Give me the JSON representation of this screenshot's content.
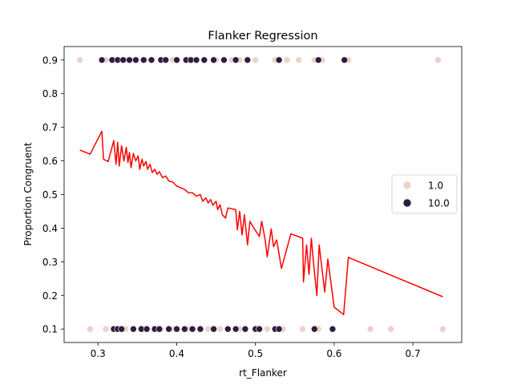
{
  "chart_data": {
    "type": "scatter",
    "title": "Flanker Regression",
    "xlabel": "rt_Flanker",
    "ylabel": "Proportion Congruent",
    "xlim": [
      0.257,
      0.762
    ],
    "ylim": [
      0.06,
      0.94
    ],
    "xticks": [
      {
        "value": 0.3,
        "label": "0.3"
      },
      {
        "value": 0.4,
        "label": "0.4"
      },
      {
        "value": 0.5,
        "label": "0.5"
      },
      {
        "value": 0.6,
        "label": "0.6"
      },
      {
        "value": 0.7,
        "label": "0.7"
      }
    ],
    "yticks": [
      {
        "value": 0.1,
        "label": "0.1"
      },
      {
        "value": 0.2,
        "label": "0.2"
      },
      {
        "value": 0.3,
        "label": "0.3"
      },
      {
        "value": 0.4,
        "label": "0.4"
      },
      {
        "value": 0.5,
        "label": "0.5"
      },
      {
        "value": 0.6,
        "label": "0.6"
      },
      {
        "value": 0.7,
        "label": "0.7"
      },
      {
        "value": 0.8,
        "label": "0.8"
      },
      {
        "value": 0.9,
        "label": "0.9"
      }
    ],
    "grid": false,
    "legend": {
      "position": "center-right"
    },
    "series": [
      {
        "name": "1.0",
        "color": "#edd1cb",
        "points": [
          [
            0.277,
            0.9
          ],
          [
            0.31,
            0.9
          ],
          [
            0.327,
            0.9
          ],
          [
            0.338,
            0.9
          ],
          [
            0.36,
            0.9
          ],
          [
            0.395,
            0.9
          ],
          [
            0.42,
            0.9
          ],
          [
            0.45,
            0.9
          ],
          [
            0.47,
            0.9
          ],
          [
            0.48,
            0.9
          ],
          [
            0.5,
            0.9
          ],
          [
            0.525,
            0.9
          ],
          [
            0.54,
            0.9
          ],
          [
            0.555,
            0.9
          ],
          [
            0.575,
            0.9
          ],
          [
            0.585,
            0.9
          ],
          [
            0.618,
            0.9
          ],
          [
            0.732,
            0.9
          ],
          [
            0.29,
            0.1
          ],
          [
            0.31,
            0.1
          ],
          [
            0.328,
            0.1
          ],
          [
            0.335,
            0.1
          ],
          [
            0.36,
            0.1
          ],
          [
            0.38,
            0.1
          ],
          [
            0.395,
            0.1
          ],
          [
            0.415,
            0.1
          ],
          [
            0.44,
            0.1
          ],
          [
            0.455,
            0.1
          ],
          [
            0.48,
            0.1
          ],
          [
            0.515,
            0.1
          ],
          [
            0.535,
            0.1
          ],
          [
            0.56,
            0.1
          ],
          [
            0.58,
            0.1
          ],
          [
            0.646,
            0.1
          ],
          [
            0.672,
            0.1
          ],
          [
            0.738,
            0.1
          ]
        ]
      },
      {
        "name": "10.0",
        "color": "#2d1e3e",
        "points": [
          [
            0.305,
            0.9
          ],
          [
            0.318,
            0.9
          ],
          [
            0.325,
            0.9
          ],
          [
            0.332,
            0.9
          ],
          [
            0.34,
            0.9
          ],
          [
            0.348,
            0.9
          ],
          [
            0.358,
            0.9
          ],
          [
            0.368,
            0.9
          ],
          [
            0.38,
            0.9
          ],
          [
            0.386,
            0.9
          ],
          [
            0.4,
            0.9
          ],
          [
            0.412,
            0.9
          ],
          [
            0.418,
            0.9
          ],
          [
            0.425,
            0.9
          ],
          [
            0.435,
            0.9
          ],
          [
            0.447,
            0.9
          ],
          [
            0.46,
            0.9
          ],
          [
            0.475,
            0.9
          ],
          [
            0.49,
            0.9
          ],
          [
            0.53,
            0.9
          ],
          [
            0.58,
            0.9
          ],
          [
            0.613,
            0.9
          ],
          [
            0.32,
            0.1
          ],
          [
            0.325,
            0.1
          ],
          [
            0.33,
            0.1
          ],
          [
            0.345,
            0.1
          ],
          [
            0.355,
            0.1
          ],
          [
            0.362,
            0.1
          ],
          [
            0.372,
            0.1
          ],
          [
            0.378,
            0.1
          ],
          [
            0.39,
            0.1
          ],
          [
            0.4,
            0.1
          ],
          [
            0.41,
            0.1
          ],
          [
            0.42,
            0.1
          ],
          [
            0.43,
            0.1
          ],
          [
            0.447,
            0.1
          ],
          [
            0.465,
            0.1
          ],
          [
            0.475,
            0.1
          ],
          [
            0.487,
            0.1
          ],
          [
            0.5,
            0.1
          ],
          [
            0.505,
            0.1
          ],
          [
            0.525,
            0.1
          ],
          [
            0.53,
            0.1
          ],
          [
            0.575,
            0.1
          ],
          [
            0.598,
            0.1
          ]
        ]
      }
    ],
    "line": {
      "color": "#ff0000",
      "points": [
        [
          0.277,
          0.632
        ],
        [
          0.29,
          0.62
        ],
        [
          0.305,
          0.688
        ],
        [
          0.307,
          0.605
        ],
        [
          0.313,
          0.598
        ],
        [
          0.32,
          0.66
        ],
        [
          0.323,
          0.59
        ],
        [
          0.325,
          0.655
        ],
        [
          0.327,
          0.585
        ],
        [
          0.33,
          0.645
        ],
        [
          0.333,
          0.6
        ],
        [
          0.336,
          0.64
        ],
        [
          0.338,
          0.595
        ],
        [
          0.34,
          0.625
        ],
        [
          0.342,
          0.58
        ],
        [
          0.345,
          0.622
        ],
        [
          0.348,
          0.6
        ],
        [
          0.351,
          0.615
        ],
        [
          0.353,
          0.575
        ],
        [
          0.356,
          0.605
        ],
        [
          0.358,
          0.585
        ],
        [
          0.361,
          0.598
        ],
        [
          0.363,
          0.575
        ],
        [
          0.366,
          0.59
        ],
        [
          0.369,
          0.565
        ],
        [
          0.372,
          0.575
        ],
        [
          0.375,
          0.56
        ],
        [
          0.378,
          0.568
        ],
        [
          0.382,
          0.55
        ],
        [
          0.386,
          0.555
        ],
        [
          0.39,
          0.54
        ],
        [
          0.395,
          0.537
        ],
        [
          0.4,
          0.525
        ],
        [
          0.405,
          0.52
        ],
        [
          0.41,
          0.515
        ],
        [
          0.415,
          0.505
        ],
        [
          0.42,
          0.505
        ],
        [
          0.425,
          0.495
        ],
        [
          0.43,
          0.5
        ],
        [
          0.433,
          0.48
        ],
        [
          0.437,
          0.49
        ],
        [
          0.44,
          0.475
        ],
        [
          0.443,
          0.485
        ],
        [
          0.446,
          0.468
        ],
        [
          0.45,
          0.48
        ],
        [
          0.452,
          0.455
        ],
        [
          0.455,
          0.47
        ],
        [
          0.458,
          0.44
        ],
        [
          0.462,
          0.43
        ],
        [
          0.465,
          0.46
        ],
        [
          0.475,
          0.455
        ],
        [
          0.477,
          0.395
        ],
        [
          0.48,
          0.45
        ],
        [
          0.483,
          0.38
        ],
        [
          0.486,
          0.44
        ],
        [
          0.49,
          0.35
        ],
        [
          0.493,
          0.42
        ],
        [
          0.498,
          0.4
        ],
        [
          0.505,
          0.375
        ],
        [
          0.508,
          0.42
        ],
        [
          0.512,
          0.37
        ],
        [
          0.515,
          0.315
        ],
        [
          0.52,
          0.398
        ],
        [
          0.523,
          0.345
        ],
        [
          0.527,
          0.365
        ],
        [
          0.533,
          0.28
        ],
        [
          0.545,
          0.383
        ],
        [
          0.56,
          0.37
        ],
        [
          0.561,
          0.24
        ],
        [
          0.565,
          0.35
        ],
        [
          0.568,
          0.262
        ],
        [
          0.571,
          0.37
        ],
        [
          0.574,
          0.29
        ],
        [
          0.578,
          0.2
        ],
        [
          0.581,
          0.35
        ],
        [
          0.588,
          0.21
        ],
        [
          0.592,
          0.308
        ],
        [
          0.6,
          0.165
        ],
        [
          0.612,
          0.143
        ],
        [
          0.618,
          0.313
        ],
        [
          0.738,
          0.196
        ]
      ]
    }
  }
}
